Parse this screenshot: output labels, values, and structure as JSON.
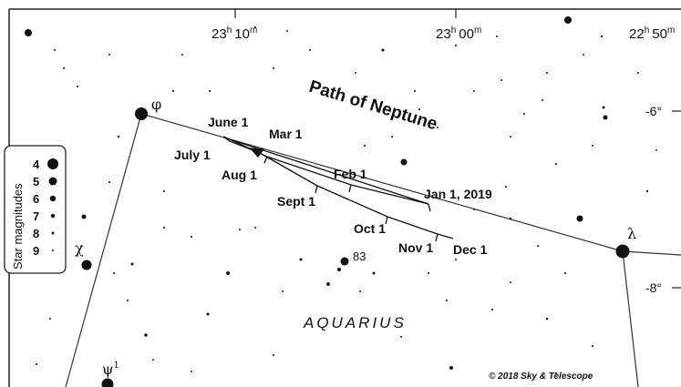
{
  "title": "Path of Neptune",
  "ra_labels": [
    {
      "hour": "23",
      "h": "h",
      "min": "10",
      "m": "m"
    },
    {
      "hour": "23",
      "h": "h",
      "min": "00",
      "m": "m"
    },
    {
      "hour": "22",
      "h": "h",
      "min": "50",
      "m": "m"
    }
  ],
  "dec_labels": [
    "-6°",
    "-8°"
  ],
  "dates": [
    "Jan 1, 2019",
    "Feb 1",
    "Mar 1",
    "June 1",
    "July 1",
    "Aug 1",
    "Sept 1",
    "Oct 1",
    "Nov 1",
    "Dec 1"
  ],
  "stars": {
    "phi": "φ",
    "lambda": "λ",
    "chi": "χ",
    "psi": "ψ",
    "psi_index": "1",
    "n83": "83"
  },
  "constellation": "AQUARIUS",
  "credit": "© 2018 Sky & Telescope",
  "legend": {
    "title": "Star magnitudes",
    "magnitudes": [
      "4",
      "5",
      "6",
      "7",
      "8",
      "9"
    ]
  }
}
